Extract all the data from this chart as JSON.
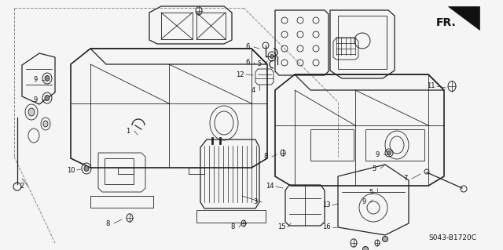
{
  "diagram_code": "S043-B1720C",
  "bg_color": "#f5f5f5",
  "line_color": "#222222",
  "text_color": "#111111",
  "label_fontsize": 6.0,
  "code_fontsize": 6.5
}
